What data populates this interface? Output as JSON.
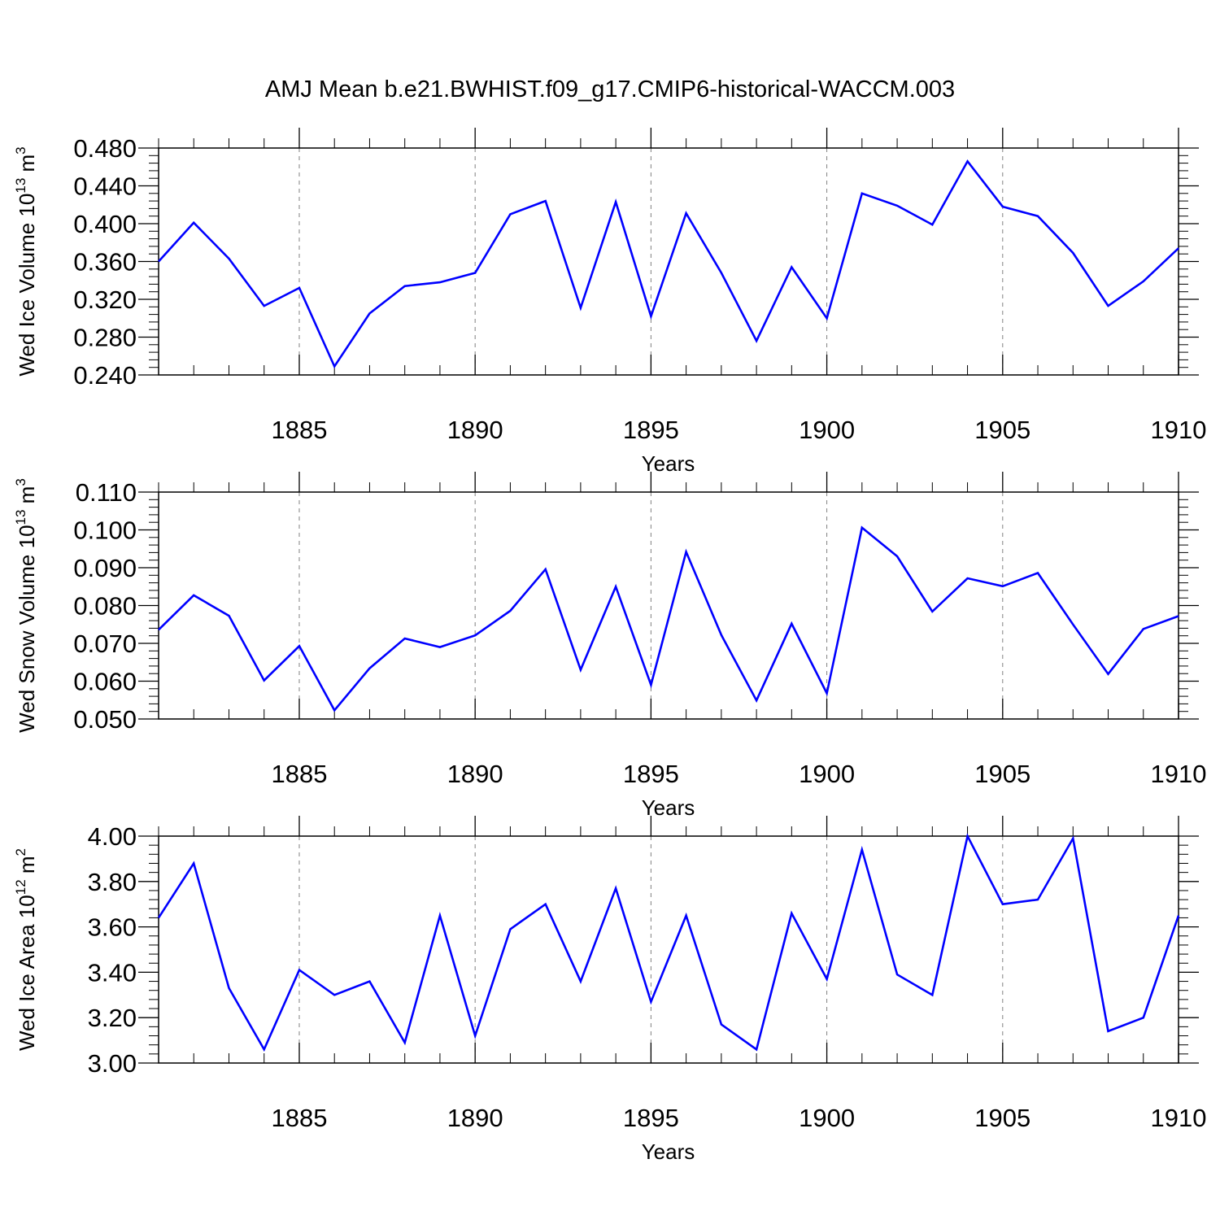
{
  "title": "AMJ Mean b.e21.BWHIST.f09_g17.CMIP6-historical-WACCM.003",
  "colors": {
    "series": "#0000ff",
    "axis": "#000000",
    "grid": "#808080"
  },
  "chart_data": [
    {
      "type": "line",
      "ylabel_parts": [
        "Wed Ice Volume 10",
        "13",
        " m",
        "3"
      ],
      "xlabel": "Years",
      "xlim": [
        1881,
        1910
      ],
      "ylim": [
        0.24,
        0.48
      ],
      "yticks": [
        "0.240",
        "0.280",
        "0.320",
        "0.360",
        "0.400",
        "0.440",
        "0.480"
      ],
      "xticks": [
        "1885",
        "1890",
        "1895",
        "1900",
        "1905",
        "1910"
      ],
      "grid": "vertical dashed at major x ticks",
      "x": [
        1881,
        1882,
        1883,
        1884,
        1885,
        1886,
        1887,
        1888,
        1889,
        1890,
        1891,
        1892,
        1893,
        1894,
        1895,
        1896,
        1897,
        1898,
        1899,
        1900,
        1901,
        1902,
        1903,
        1904,
        1905,
        1906,
        1907,
        1908,
        1909,
        1910
      ],
      "values": [
        0.36,
        0.401,
        0.363,
        0.313,
        0.332,
        0.249,
        0.305,
        0.334,
        0.338,
        0.348,
        0.41,
        0.424,
        0.311,
        0.423,
        0.302,
        0.411,
        0.348,
        0.276,
        0.354,
        0.3,
        0.432,
        0.419,
        0.399,
        0.466,
        0.418,
        0.408,
        0.369,
        0.313,
        0.339,
        0.374
      ]
    },
    {
      "type": "line",
      "ylabel_parts": [
        "Wed Snow Volume 10",
        "13",
        " m",
        "3"
      ],
      "xlabel": "Years",
      "xlim": [
        1881,
        1910
      ],
      "ylim": [
        0.05,
        0.11
      ],
      "yticks": [
        "0.050",
        "0.060",
        "0.070",
        "0.080",
        "0.090",
        "0.100",
        "0.110"
      ],
      "xticks": [
        "1885",
        "1890",
        "1895",
        "1900",
        "1905",
        "1910"
      ],
      "grid": "vertical dashed at major x ticks",
      "x": [
        1881,
        1882,
        1883,
        1884,
        1885,
        1886,
        1887,
        1888,
        1889,
        1890,
        1891,
        1892,
        1893,
        1894,
        1895,
        1896,
        1897,
        1898,
        1899,
        1900,
        1901,
        1902,
        1903,
        1904,
        1905,
        1906,
        1907,
        1908,
        1909,
        1910
      ],
      "values": [
        0.0736,
        0.0827,
        0.0773,
        0.0602,
        0.0693,
        0.0523,
        0.0634,
        0.0713,
        0.069,
        0.0721,
        0.0786,
        0.0896,
        0.063,
        0.085,
        0.059,
        0.0942,
        0.0722,
        0.0549,
        0.0752,
        0.0568,
        0.1006,
        0.093,
        0.0784,
        0.0872,
        0.0851,
        0.0886,
        0.075,
        0.0619,
        0.0738,
        0.0772
      ]
    },
    {
      "type": "line",
      "ylabel_parts": [
        "Wed Ice Area 10",
        "12",
        " m",
        "2"
      ],
      "xlabel": "Years",
      "xlim": [
        1881,
        1910
      ],
      "ylim": [
        3.0,
        4.0
      ],
      "yticks": [
        "3.00",
        "3.20",
        "3.40",
        "3.60",
        "3.80",
        "4.00"
      ],
      "xticks": [
        "1885",
        "1890",
        "1895",
        "1900",
        "1905",
        "1910"
      ],
      "grid": "vertical dashed at major x ticks",
      "x": [
        1881,
        1882,
        1883,
        1884,
        1885,
        1886,
        1887,
        1888,
        1889,
        1890,
        1891,
        1892,
        1893,
        1894,
        1895,
        1896,
        1897,
        1898,
        1899,
        1900,
        1901,
        1902,
        1903,
        1904,
        1905,
        1906,
        1907,
        1908,
        1909,
        1910
      ],
      "values": [
        3.64,
        3.88,
        3.33,
        3.06,
        3.41,
        3.3,
        3.36,
        3.09,
        3.65,
        3.12,
        3.59,
        3.7,
        3.36,
        3.77,
        3.27,
        3.65,
        3.17,
        3.06,
        3.66,
        3.37,
        3.94,
        3.39,
        3.3,
        4.0,
        3.7,
        3.72,
        3.99,
        3.14,
        3.2,
        3.65
      ]
    }
  ]
}
